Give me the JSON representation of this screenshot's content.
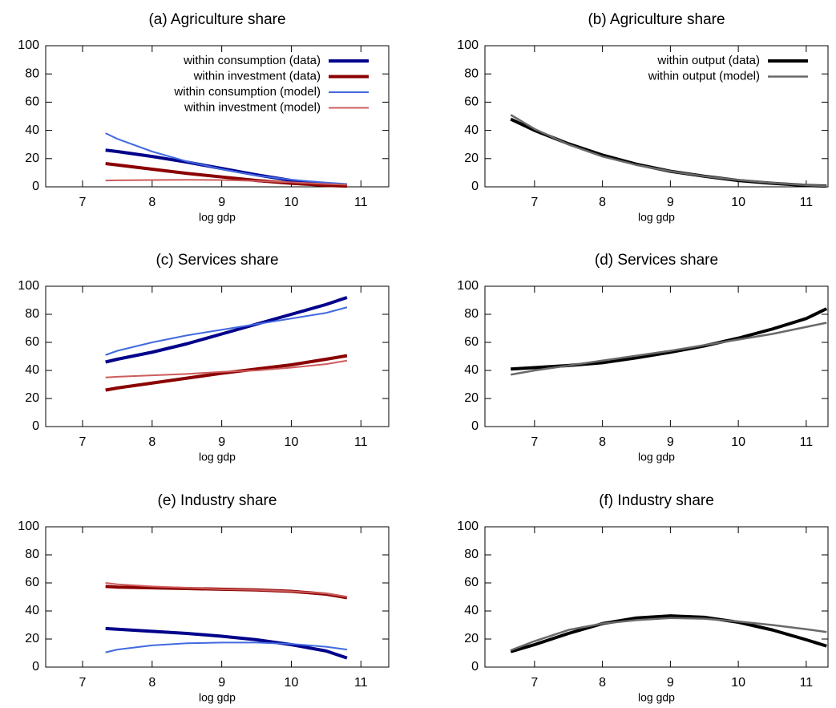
{
  "chart_data": [
    {
      "type": "line",
      "title": "(a) Agriculture share",
      "x_label": "log gdp",
      "x": [
        7.33,
        7.5,
        8,
        8.5,
        9,
        9.5,
        10,
        10.5,
        10.8
      ],
      "series": [
        {
          "name": "within consumption (data)",
          "color": "#00008b",
          "linewidth": 4,
          "values": [
            26,
            25,
            21.5,
            17.5,
            13,
            8.5,
            4.5,
            2,
            1
          ]
        },
        {
          "name": "within investment (data)",
          "color": "#8b0000",
          "linewidth": 4,
          "values": [
            16.5,
            15.5,
            12.5,
            9.5,
            7,
            4.5,
            2.5,
            1,
            0.5
          ]
        },
        {
          "name": "within consumption (model)",
          "color": "#4169e1",
          "linewidth": 2,
          "values": [
            38,
            34,
            25,
            18,
            12.5,
            8,
            5,
            3,
            2
          ]
        },
        {
          "name": "within investment (model)",
          "color": "#cd5c5c",
          "linewidth": 2,
          "values": [
            4.5,
            4.6,
            4.8,
            5,
            4.8,
            4.2,
            3.2,
            2,
            1.5
          ]
        }
      ],
      "xlim": [
        6.47,
        11.4
      ],
      "xticks": [
        7,
        8,
        9,
        10,
        11
      ],
      "ylim": [
        0,
        100
      ],
      "yticks": [
        0,
        20,
        40,
        60,
        80,
        100
      ],
      "legend": "top right"
    },
    {
      "type": "line",
      "title": "(b) Agriculture share",
      "x_label": "log gdp",
      "x": [
        6.65,
        7,
        7.5,
        8,
        8.5,
        9,
        9.5,
        10,
        10.5,
        11,
        11.3
      ],
      "series": [
        {
          "name": "within output (data)",
          "color": "#000000",
          "linewidth": 4,
          "values": [
            48,
            40,
            30.5,
            22.5,
            16,
            11,
            7.5,
            4.5,
            2.5,
            1,
            0.5
          ]
        },
        {
          "name": "within output (model)",
          "color": "#696969",
          "linewidth": 2.5,
          "values": [
            51,
            41,
            30,
            21.5,
            15.5,
            11,
            7.5,
            4.8,
            2.8,
            1.2,
            0.5
          ]
        }
      ],
      "xlim": [
        6.27,
        11.32
      ],
      "xticks": [
        7,
        8,
        9,
        10,
        11
      ],
      "ylim": [
        0,
        100
      ],
      "yticks": [
        0,
        20,
        40,
        60,
        80,
        100
      ],
      "legend": "top right"
    },
    {
      "type": "line",
      "title": "(c) Services share",
      "x_label": "log gdp",
      "x": [
        7.33,
        7.5,
        8,
        8.5,
        9,
        9.5,
        10,
        10.5,
        10.8
      ],
      "series": [
        {
          "color": "#00008b",
          "linewidth": 4,
          "values": [
            46,
            48,
            53,
            59,
            66,
            73,
            80,
            87,
            92
          ]
        },
        {
          "color": "#8b0000",
          "linewidth": 4,
          "values": [
            26,
            27.5,
            31,
            34.5,
            38,
            41,
            44,
            48,
            50.5
          ]
        },
        {
          "color": "#4169e1",
          "linewidth": 2,
          "values": [
            51,
            54,
            60,
            65,
            69,
            73,
            77,
            81,
            85
          ]
        },
        {
          "color": "#cd5c5c",
          "linewidth": 2,
          "values": [
            35,
            35.5,
            36.5,
            37.5,
            39,
            40,
            42,
            44.5,
            47
          ]
        }
      ],
      "xlim": [
        6.47,
        11.4
      ],
      "xticks": [
        7,
        8,
        9,
        10,
        11
      ],
      "ylim": [
        0,
        100
      ],
      "yticks": [
        0,
        20,
        40,
        60,
        80,
        100
      ]
    },
    {
      "type": "line",
      "title": "(d) Services share",
      "x_label": "log gdp",
      "x": [
        6.65,
        7,
        7.5,
        8,
        8.5,
        9,
        9.5,
        10,
        10.5,
        11,
        11.3
      ],
      "series": [
        {
          "color": "#000000",
          "linewidth": 4,
          "values": [
            41,
            42,
            43.5,
            45.5,
            49,
            53,
            57.5,
            63,
            69.5,
            77,
            84
          ]
        },
        {
          "color": "#696969",
          "linewidth": 2.5,
          "values": [
            37,
            40,
            43.5,
            47,
            50.5,
            54,
            58,
            62,
            66,
            71,
            74
          ]
        }
      ],
      "xlim": [
        6.27,
        11.32
      ],
      "xticks": [
        7,
        8,
        9,
        10,
        11
      ],
      "ylim": [
        0,
        100
      ],
      "yticks": [
        0,
        20,
        40,
        60,
        80,
        100
      ]
    },
    {
      "type": "line",
      "title": "(e) Industry share",
      "x_label": "log gdp",
      "x": [
        7.33,
        7.5,
        8,
        8.5,
        9,
        9.5,
        10,
        10.5,
        10.8
      ],
      "series": [
        {
          "color": "#00008b",
          "linewidth": 4,
          "values": [
            27.5,
            27,
            25.5,
            24,
            22,
            19.5,
            16,
            11.5,
            6.5
          ]
        },
        {
          "color": "#8b0000",
          "linewidth": 4,
          "values": [
            57.5,
            57,
            56.5,
            56,
            55.5,
            55,
            54,
            52,
            49.5
          ]
        },
        {
          "color": "#4169e1",
          "linewidth": 2,
          "values": [
            10.5,
            12.5,
            15.5,
            17,
            17.5,
            17.5,
            16.5,
            14.5,
            12.5
          ]
        },
        {
          "color": "#cd5c5c",
          "linewidth": 2,
          "values": [
            60,
            59,
            57.5,
            56.5,
            55.5,
            55,
            54,
            52.5,
            50
          ]
        }
      ],
      "xlim": [
        6.47,
        11.4
      ],
      "xticks": [
        7,
        8,
        9,
        10,
        11
      ],
      "ylim": [
        0,
        100
      ],
      "yticks": [
        0,
        20,
        40,
        60,
        80,
        100
      ]
    },
    {
      "type": "line",
      "title": "(f) Industry share",
      "x_label": "log gdp",
      "x": [
        6.65,
        7,
        7.5,
        8,
        8.5,
        9,
        9.5,
        10,
        10.5,
        11,
        11.3
      ],
      "series": [
        {
          "color": "#000000",
          "linewidth": 4,
          "values": [
            11,
            16,
            24,
            31,
            35,
            36.5,
            35.5,
            32,
            26.5,
            19.5,
            15
          ]
        },
        {
          "color": "#696969",
          "linewidth": 2.5,
          "values": [
            12,
            18.5,
            26.5,
            31,
            33.5,
            35,
            34.5,
            32.5,
            30,
            27,
            25
          ]
        }
      ],
      "xlim": [
        6.27,
        11.32
      ],
      "xticks": [
        7,
        8,
        9,
        10,
        11
      ],
      "ylim": [
        0,
        100
      ],
      "yticks": [
        0,
        20,
        40,
        60,
        80,
        100
      ]
    }
  ]
}
